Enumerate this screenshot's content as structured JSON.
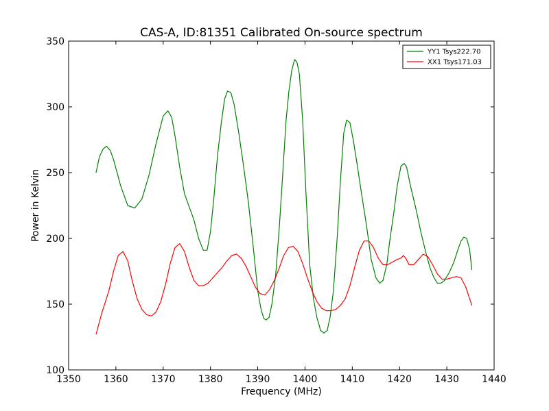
{
  "chart_data": {
    "type": "line",
    "title": "CAS-A, ID:81351 Calibrated On-source spectrum",
    "xlabel": "Frequency (MHz)",
    "ylabel": "Power in Kelvin",
    "xlim": [
      1350,
      1440
    ],
    "ylim": [
      100,
      350
    ],
    "xticks": [
      1350,
      1360,
      1370,
      1380,
      1390,
      1400,
      1410,
      1420,
      1430,
      1440
    ],
    "yticks": [
      100,
      150,
      200,
      250,
      300,
      350
    ],
    "xtick_labels": [
      "1350",
      "1360",
      "1370",
      "1380",
      "1390",
      "1400",
      "1410",
      "1420",
      "1430",
      "1440"
    ],
    "ytick_labels": [
      "100",
      "150",
      "200",
      "250",
      "300",
      "350"
    ],
    "grid": false,
    "legend_position": "top-right",
    "series": [
      {
        "name": "YY1 Tsys222.70",
        "color": "#008000",
        "x": [
          1355.8,
          1356.5,
          1357.3,
          1358.0,
          1358.8,
          1359.5,
          1361.0,
          1362.5,
          1364.0,
          1365.5,
          1367.0,
          1368.5,
          1370.0,
          1371.0,
          1371.8,
          1372.5,
          1373.5,
          1374.5,
          1375.5,
          1376.5,
          1377.5,
          1378.5,
          1379.3,
          1380.0,
          1380.7,
          1381.5,
          1382.3,
          1383.0,
          1383.6,
          1384.3,
          1385.0,
          1386.0,
          1387.0,
          1388.0,
          1389.0,
          1390.0,
          1390.7,
          1391.3,
          1391.8,
          1392.4,
          1393.0,
          1393.8,
          1394.6,
          1395.3,
          1396.0,
          1396.6,
          1397.2,
          1397.8,
          1398.3,
          1398.8,
          1399.5,
          1400.2,
          1401.0,
          1401.8,
          1402.5,
          1403.3,
          1404.0,
          1404.7,
          1405.3,
          1406.0,
          1406.8,
          1407.5,
          1408.2,
          1408.8,
          1409.5,
          1410.2,
          1411.0,
          1412.0,
          1413.0,
          1414.0,
          1415.0,
          1415.8,
          1416.5,
          1417.3,
          1418.0,
          1418.8,
          1419.5,
          1420.3,
          1421.0,
          1421.5,
          1422.3,
          1423.5,
          1424.5,
          1425.5,
          1426.5,
          1427.3,
          1428.0,
          1428.8,
          1429.5,
          1430.5,
          1431.5,
          1432.3,
          1433.0,
          1433.6,
          1434.2,
          1434.8,
          1435.3
        ],
        "values": [
          250,
          262,
          268,
          270,
          267,
          260,
          240,
          225,
          223,
          230,
          248,
          272,
          293,
          297,
          292,
          278,
          254,
          234,
          224,
          214,
          200,
          191,
          191,
          205,
          230,
          263,
          288,
          306,
          312,
          311,
          302,
          280,
          255,
          228,
          195,
          160,
          146,
          139,
          138,
          140,
          150,
          172,
          210,
          250,
          290,
          312,
          328,
          336,
          334,
          325,
          290,
          235,
          180,
          154,
          140,
          130,
          128,
          130,
          140,
          160,
          200,
          244,
          280,
          290,
          288,
          275,
          257,
          233,
          210,
          184,
          170,
          166,
          168,
          180,
          200,
          220,
          240,
          255,
          257,
          254,
          240,
          222,
          205,
          190,
          177,
          170,
          166,
          166,
          168,
          174,
          182,
          191,
          198,
          201,
          200,
          192,
          176
        ]
      },
      {
        "name": "XX1 Tsys171.03",
        "color": "#ff0000",
        "x": [
          1355.8,
          1357.0,
          1358.5,
          1359.5,
          1360.5,
          1361.5,
          1362.5,
          1363.5,
          1364.5,
          1365.5,
          1366.5,
          1367.5,
          1368.5,
          1369.5,
          1370.5,
          1371.5,
          1372.5,
          1373.5,
          1374.5,
          1375.5,
          1376.5,
          1377.5,
          1378.5,
          1379.5,
          1380.5,
          1381.5,
          1382.5,
          1383.5,
          1384.5,
          1385.5,
          1386.5,
          1387.5,
          1388.5,
          1389.5,
          1390.5,
          1391.5,
          1392.5,
          1393.5,
          1394.5,
          1395.5,
          1396.5,
          1397.5,
          1398.5,
          1399.5,
          1400.5,
          1401.5,
          1402.5,
          1403.5,
          1404.5,
          1405.5,
          1406.5,
          1407.5,
          1408.5,
          1409.5,
          1410.5,
          1411.5,
          1412.5,
          1413.5,
          1414.5,
          1415.5,
          1416.5,
          1417.5,
          1418.5,
          1419.5,
          1420.3,
          1420.8,
          1421.3,
          1422.0,
          1423.0,
          1424.0,
          1425.0,
          1426.0,
          1427.0,
          1428.0,
          1429.0,
          1430.0,
          1431.0,
          1432.0,
          1433.0,
          1434.0,
          1435.3
        ],
        "values": [
          127,
          143,
          160,
          175,
          187,
          190,
          183,
          167,
          154,
          146,
          142,
          141,
          144,
          152,
          165,
          181,
          193,
          196,
          190,
          178,
          168,
          164,
          164,
          166,
          170,
          174,
          178,
          183,
          187,
          188,
          185,
          179,
          171,
          163,
          158,
          157,
          161,
          168,
          177,
          187,
          193,
          194,
          190,
          181,
          170,
          160,
          152,
          147,
          145,
          145,
          146,
          149,
          154,
          164,
          178,
          191,
          198,
          198,
          193,
          185,
          180,
          180,
          182,
          184,
          185,
          187,
          185,
          180,
          180,
          184,
          188,
          186,
          180,
          173,
          169,
          169,
          170,
          171,
          170,
          163,
          149
        ]
      }
    ]
  }
}
